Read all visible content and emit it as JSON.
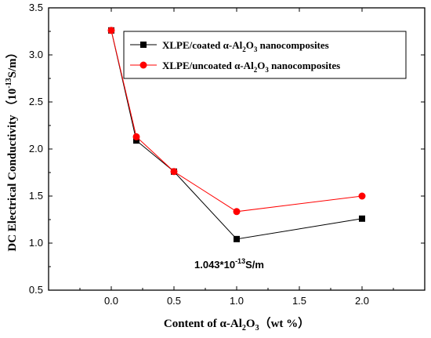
{
  "chart_data": {
    "type": "line",
    "x": [
      0.0,
      0.2,
      0.5,
      1.0,
      2.0
    ],
    "series": [
      {
        "name_parts": [
          "XLPE/coated α-Al",
          "2",
          "O",
          "3",
          " nanocomposites"
        ],
        "values": [
          3.26,
          2.09,
          1.76,
          1.043,
          1.26
        ],
        "color": "#000000",
        "marker": "square"
      },
      {
        "name_parts": [
          "XLPE/uncoated α-Al",
          "2",
          "O",
          "3",
          " nanocomposites"
        ],
        "values": [
          3.26,
          2.13,
          1.76,
          1.335,
          1.5
        ],
        "color": "#ff0000",
        "marker": "circle"
      }
    ],
    "xlabel_parts": [
      "Content of α-Al",
      "2",
      "O",
      "3",
      "（wt %）"
    ],
    "ylabel_parts": [
      "DC Electrical Conductivity （10",
      "-13",
      "S/m）"
    ],
    "xlim": [
      -0.5,
      2.5
    ],
    "ylim": [
      0.5,
      3.5
    ],
    "xticks": [
      "0.0",
      "0.5",
      "1.0",
      "1.5",
      "2.0"
    ],
    "yticks": [
      "0.5",
      "1.0",
      "1.5",
      "2.0",
      "2.5",
      "3.0",
      "3.5"
    ],
    "grid": false,
    "legend_position": "top-right",
    "annotation_parts": [
      "1.043*10",
      "-13",
      "S/m"
    ]
  }
}
